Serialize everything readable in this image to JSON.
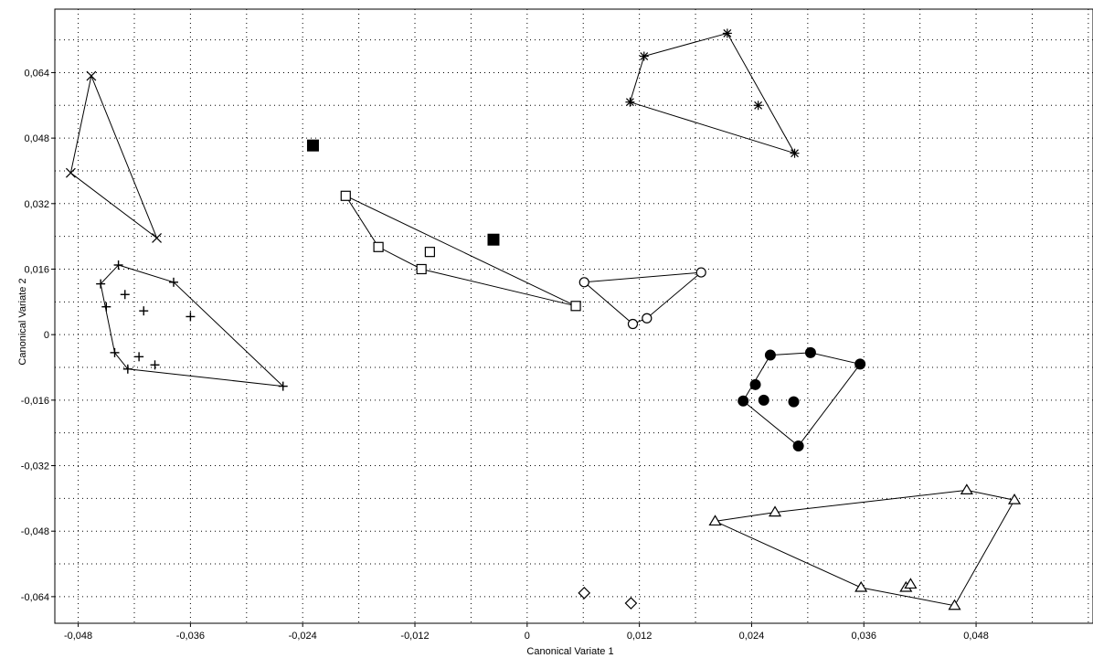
{
  "chart_data": {
    "type": "scatter",
    "xlabel": "Canonical Variate 1",
    "ylabel": "Canonical Variate 2",
    "xlim": [
      -0.0505,
      0.0605
    ],
    "ylim": [
      -0.0705,
      0.0795
    ],
    "grid": true,
    "legend": "none",
    "x_ticks": [
      {
        "value": -0.048,
        "label": "-0,048"
      },
      {
        "value": -0.036,
        "label": "-0,036"
      },
      {
        "value": -0.024,
        "label": "-0,024"
      },
      {
        "value": -0.012,
        "label": "-0,012"
      },
      {
        "value": 0,
        "label": "0"
      },
      {
        "value": 0.012,
        "label": "0,012"
      },
      {
        "value": 0.024,
        "label": "0,024"
      },
      {
        "value": 0.036,
        "label": "0,036"
      },
      {
        "value": 0.048,
        "label": "0,048"
      }
    ],
    "y_ticks": [
      {
        "value": 0.064,
        "label": "0,064"
      },
      {
        "value": 0.048,
        "label": "0,048"
      },
      {
        "value": 0.032,
        "label": "0,032"
      },
      {
        "value": 0.016,
        "label": "0,016"
      },
      {
        "value": 0,
        "label": "0"
      },
      {
        "value": -0.016,
        "label": "-0,016"
      },
      {
        "value": -0.032,
        "label": "-0,032"
      },
      {
        "value": -0.048,
        "label": "-0,048"
      },
      {
        "value": -0.064,
        "label": "-0,064"
      }
    ],
    "series": [
      {
        "marker": "x",
        "hull": true,
        "points": [
          [
            -0.0466,
            0.0632
          ],
          [
            -0.0488,
            0.0395
          ],
          [
            -0.0396,
            0.0236
          ]
        ]
      },
      {
        "marker": "plus",
        "hull": true,
        "points": [
          [
            -0.0437,
            0.017
          ],
          [
            -0.0456,
            0.0124
          ],
          [
            -0.045,
            0.0068
          ],
          [
            -0.041,
            0.0058
          ],
          [
            -0.043,
            0.0098
          ],
          [
            -0.036,
            0.0044
          ],
          [
            -0.0378,
            0.0128
          ],
          [
            -0.0441,
            -0.0044
          ],
          [
            -0.0415,
            -0.0054
          ],
          [
            -0.0398,
            -0.0074
          ],
          [
            -0.0427,
            -0.0084
          ],
          [
            -0.0261,
            -0.0126
          ]
        ]
      },
      {
        "marker": "asterisk",
        "hull": true,
        "points": [
          [
            0.0125,
            0.068
          ],
          [
            0.0214,
            0.0736
          ],
          [
            0.011,
            0.0568
          ],
          [
            0.0247,
            0.056
          ],
          [
            0.0286,
            0.0443
          ]
        ]
      },
      {
        "marker": "square-open",
        "hull": true,
        "points": [
          [
            -0.0194,
            0.0339
          ],
          [
            -0.0159,
            0.0214
          ],
          [
            -0.0104,
            0.0202
          ],
          [
            -0.0113,
            0.016
          ],
          [
            0.0052,
            0.007
          ]
        ]
      },
      {
        "marker": "square-filled",
        "hull": false,
        "points": [
          [
            -0.0229,
            0.0462
          ],
          [
            -0.0036,
            0.0232
          ]
        ]
      },
      {
        "marker": "circle-open",
        "hull": true,
        "points": [
          [
            0.0061,
            0.0128
          ],
          [
            0.0186,
            0.0152
          ],
          [
            0.0128,
            0.004
          ],
          [
            0.0113,
            0.0026
          ]
        ]
      },
      {
        "marker": "circle-filled",
        "hull": true,
        "points": [
          [
            0.026,
            -0.005
          ],
          [
            0.0303,
            -0.0044
          ],
          [
            0.0356,
            -0.0072
          ],
          [
            0.0244,
            -0.0122
          ],
          [
            0.0231,
            -0.0162
          ],
          [
            0.0253,
            -0.016
          ],
          [
            0.0285,
            -0.0164
          ],
          [
            0.029,
            -0.0272
          ]
        ]
      },
      {
        "marker": "triangle-open",
        "hull": true,
        "points": [
          [
            0.0201,
            -0.0456
          ],
          [
            0.0265,
            -0.0434
          ],
          [
            0.047,
            -0.038
          ],
          [
            0.0521,
            -0.0404
          ],
          [
            0.0457,
            -0.0662
          ],
          [
            0.0357,
            -0.0618
          ],
          [
            0.0405,
            -0.0618
          ],
          [
            0.041,
            -0.061
          ]
        ]
      },
      {
        "marker": "diamond-open",
        "hull": false,
        "points": [
          [
            0.0061,
            -0.0631
          ],
          [
            0.0111,
            -0.0656
          ]
        ]
      }
    ]
  }
}
